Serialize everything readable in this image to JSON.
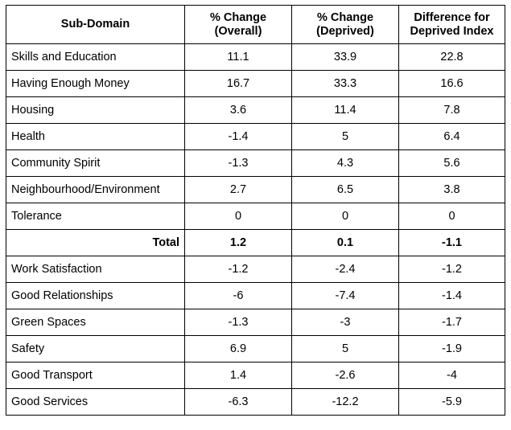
{
  "table": {
    "headers": [
      {
        "line1": "Sub-Domain",
        "line2": ""
      },
      {
        "line1": "% Change",
        "line2": "(Overall)"
      },
      {
        "line1": "% Change",
        "line2": "(Deprived)"
      },
      {
        "line1": "Difference for",
        "line2": "Deprived Index"
      }
    ],
    "rows": [
      {
        "name": "Skills and Education",
        "overall": "11.1",
        "deprived": "33.9",
        "difference": "22.8"
      },
      {
        "name": "Having Enough Money",
        "overall": "16.7",
        "deprived": "33.3",
        "difference": "16.6"
      },
      {
        "name": "Housing",
        "overall": "3.6",
        "deprived": "11.4",
        "difference": "7.8"
      },
      {
        "name": "Health",
        "overall": "-1.4",
        "deprived": "5",
        "difference": "6.4"
      },
      {
        "name": "Community Spirit",
        "overall": "-1.3",
        "deprived": "4.3",
        "difference": "5.6"
      },
      {
        "name": "Neighbourhood/Environment",
        "overall": "2.7",
        "deprived": "6.5",
        "difference": "3.8"
      },
      {
        "name": "Tolerance",
        "overall": "0",
        "deprived": "0",
        "difference": "0"
      },
      {
        "name": "Total",
        "overall": "1.2",
        "deprived": "0.1",
        "difference": "-1.1"
      },
      {
        "name": "Work Satisfaction",
        "overall": "-1.2",
        "deprived": "-2.4",
        "difference": "-1.2"
      },
      {
        "name": "Good Relationships",
        "overall": "-6",
        "deprived": "-7.4",
        "difference": "-1.4"
      },
      {
        "name": "Green Spaces",
        "overall": "-1.3",
        "deprived": "-3",
        "difference": "-1.7"
      },
      {
        "name": "Safety",
        "overall": "6.9",
        "deprived": "5",
        "difference": "-1.9"
      },
      {
        "name": "Good Transport",
        "overall": "1.4",
        "deprived": "-2.6",
        "difference": "-4"
      },
      {
        "name": "Good Services",
        "overall": "-6.3",
        "deprived": "-12.2",
        "difference": "-5.9"
      }
    ]
  }
}
